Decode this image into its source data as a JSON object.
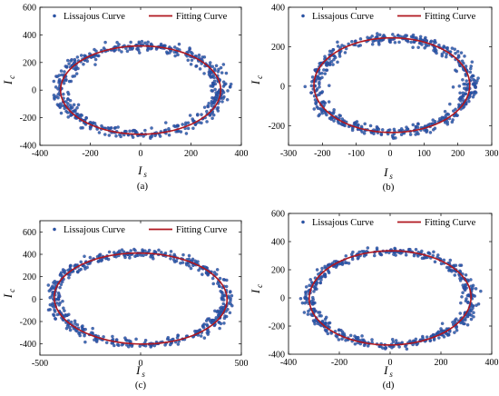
{
  "figure": {
    "background": "#ffffff"
  },
  "colors": {
    "scatter": "#1f5fa8",
    "scatter_edge": "#3d2f8f",
    "fit": "#b0171f",
    "axis": "#000000"
  },
  "chart_data": [
    {
      "type": "scatter",
      "panel_label": "(a)",
      "xlabel": "I",
      "xlabel_sub": "s",
      "ylabel": "I",
      "ylabel_sub": "c",
      "xlim": [
        -400,
        400
      ],
      "ylim": [
        -400,
        600
      ],
      "xticks": [
        -400,
        -200,
        0,
        200,
        400
      ],
      "yticks": [
        -400,
        -200,
        0,
        200,
        400,
        600
      ],
      "grid": false,
      "legend": {
        "placement": "top",
        "entries": [
          "Lissajous Curve",
          "Fitting Curve"
        ]
      },
      "series": [
        {
          "name": "Lissajous Curve",
          "kind": "points",
          "center": [
            0,
            0
          ],
          "radius_x": 318,
          "radius_y": 320,
          "tilt_deg": -10,
          "jitter": 18,
          "count": 520
        },
        {
          "name": "Fitting Curve",
          "kind": "ellipse",
          "center": [
            0,
            0
          ],
          "radius_x": 318,
          "radius_y": 320,
          "tilt_deg": -10
        }
      ]
    },
    {
      "type": "scatter",
      "panel_label": "(b)",
      "xlabel": "I",
      "xlabel_sub": "s",
      "ylabel": "I",
      "ylabel_sub": "c",
      "xlim": [
        -300,
        300
      ],
      "ylim": [
        -300,
        400
      ],
      "xticks": [
        -300,
        -200,
        -100,
        0,
        100,
        200,
        300
      ],
      "yticks": [
        -200,
        0,
        200,
        400
      ],
      "grid": false,
      "legend": {
        "placement": "top",
        "entries": [
          "Lissajous Curve",
          "Fitting Curve"
        ]
      },
      "series": [
        {
          "name": "Lissajous Curve",
          "kind": "points",
          "center": [
            5,
            5
          ],
          "radius_x": 230,
          "radius_y": 240,
          "tilt_deg": 0,
          "jitter": 14,
          "count": 520
        },
        {
          "name": "Fitting Curve",
          "kind": "ellipse",
          "center": [
            5,
            5
          ],
          "radius_x": 230,
          "radius_y": 240,
          "tilt_deg": 0
        }
      ]
    },
    {
      "type": "scatter",
      "panel_label": "(c)",
      "xlabel": "I",
      "xlabel_sub": "s",
      "ylabel": "I",
      "ylabel_sub": "c",
      "xlim": [
        -500,
        500
      ],
      "ylim": [
        -500,
        700
      ],
      "xticks": [
        -500,
        0,
        500
      ],
      "yticks": [
        -400,
        -200,
        0,
        200,
        400,
        600
      ],
      "grid": false,
      "legend": {
        "placement": "top",
        "entries": [
          "Lissajous Curve",
          "Fitting Curve"
        ]
      },
      "series": [
        {
          "name": "Lissajous Curve",
          "kind": "points",
          "center": [
            0,
            5
          ],
          "radius_x": 430,
          "radius_y": 405,
          "tilt_deg": -12,
          "jitter": 20,
          "count": 520
        },
        {
          "name": "Fitting Curve",
          "kind": "ellipse",
          "center": [
            0,
            5
          ],
          "radius_x": 430,
          "radius_y": 405,
          "tilt_deg": -12
        }
      ]
    },
    {
      "type": "scatter",
      "panel_label": "(d)",
      "xlabel": "I",
      "xlabel_sub": "s",
      "ylabel": "I",
      "ylabel_sub": "c",
      "xlim": [
        -400,
        400
      ],
      "ylim": [
        -400,
        600
      ],
      "xticks": [
        -400,
        -200,
        0,
        200,
        400
      ],
      "yticks": [
        -400,
        -200,
        0,
        200,
        400,
        600
      ],
      "grid": false,
      "legend": {
        "placement": "top",
        "entries": [
          "Lissajous Curve",
          "Fitting Curve"
        ]
      },
      "series": [
        {
          "name": "Lissajous Curve",
          "kind": "points",
          "center": [
            0,
            0
          ],
          "radius_x": 318,
          "radius_y": 335,
          "tilt_deg": -9,
          "jitter": 16,
          "count": 520
        },
        {
          "name": "Fitting Curve",
          "kind": "ellipse",
          "center": [
            0,
            0
          ],
          "radius_x": 318,
          "radius_y": 335,
          "tilt_deg": -9
        }
      ]
    }
  ]
}
